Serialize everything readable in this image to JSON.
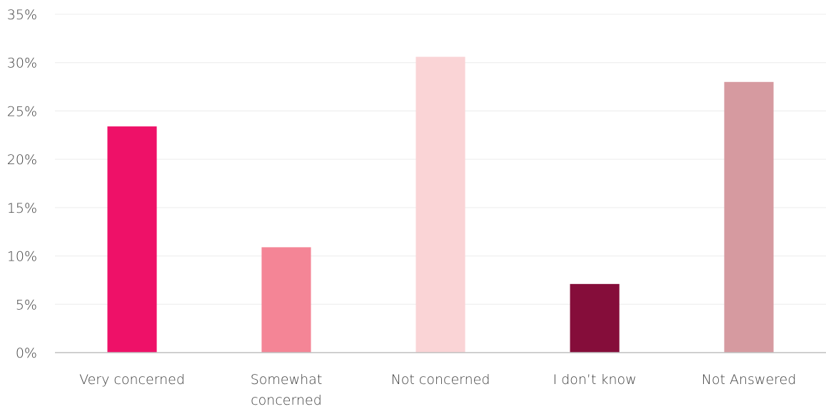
{
  "chart_data": {
    "type": "bar",
    "categories": [
      "Very concerned",
      "Somewhat concerned",
      "Not concerned",
      "I don’t know",
      "Not Answered"
    ],
    "category_lines": [
      [
        "Very concerned"
      ],
      [
        "Somewhat",
        "concerned"
      ],
      [
        "Not concerned"
      ],
      [
        "I don’t know"
      ],
      [
        "Not Answered"
      ]
    ],
    "values": [
      23.4,
      10.9,
      30.6,
      7.1,
      28.0
    ],
    "colors": [
      "#ee1168",
      "#f48596",
      "#fad4d6",
      "#850d3a",
      "#d69aa0"
    ],
    "ylim": [
      0,
      35
    ],
    "yticks": [
      0,
      5,
      10,
      15,
      20,
      25,
      30,
      35
    ],
    "ytick_labels": [
      "0%",
      "5%",
      "10%",
      "15%",
      "20%",
      "25%",
      "30%",
      "35%"
    ],
    "grid": true,
    "title": "",
    "xlabel": "",
    "ylabel": ""
  }
}
